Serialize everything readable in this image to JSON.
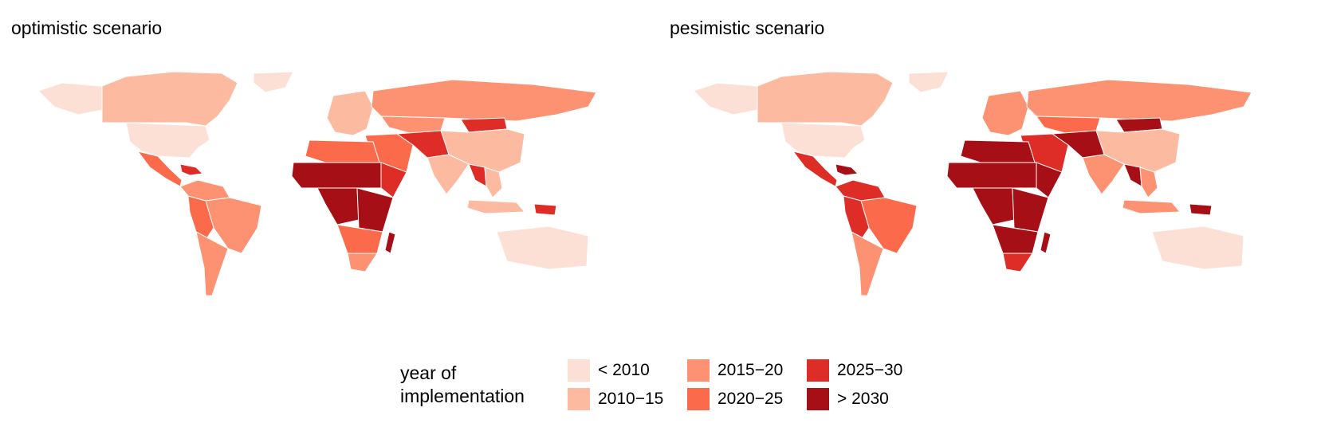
{
  "panels": [
    {
      "title": "optimistic scenario"
    },
    {
      "title": "pesimistic scenario"
    }
  ],
  "legend": {
    "title_line1": "year of",
    "title_line2": "implementation",
    "items": [
      {
        "label": "< 2010",
        "color": "#fde0d5"
      },
      {
        "label": "2010−15",
        "color": "#fcbba1"
      },
      {
        "label": "2015−20",
        "color": "#fc9272"
      },
      {
        "label": "2020−25",
        "color": "#fb6a4a"
      },
      {
        "label": "2025−30",
        "color": "#de2d26"
      },
      {
        "label": "> 2030",
        "color": "#a50f15"
      }
    ]
  },
  "regions_optimistic": {
    "canada": 1,
    "usa": 0,
    "alaska": 0,
    "greenland": 0,
    "mexico_central": 3,
    "caribbean": 4,
    "south_america_north": 2,
    "brazil": 2,
    "andes": 3,
    "southern_cone": 2,
    "europe": 1,
    "russia": 2,
    "central_asia": 2,
    "mongolia": 4,
    "china": 1,
    "middle_east": 3,
    "afghanistan": 4,
    "india": 1,
    "southeast_asia": 1,
    "myanmar_laos": 4,
    "indonesia": 1,
    "png": 4,
    "australia": 0,
    "north_africa": 3,
    "sahel": 5,
    "horn_africa": 4,
    "central_africa": 5,
    "east_africa": 5,
    "southern_africa": 3,
    "south_africa": 2,
    "madagascar": 5
  },
  "regions_pessimistic": {
    "canada": 1,
    "usa": 0,
    "alaska": 0,
    "greenland": 0,
    "mexico_central": 4,
    "caribbean": 5,
    "south_america_north": 4,
    "brazil": 3,
    "andes": 4,
    "southern_cone": 2,
    "europe": 2,
    "russia": 2,
    "central_asia": 3,
    "mongolia": 5,
    "china": 1,
    "middle_east": 4,
    "afghanistan": 5,
    "india": 2,
    "southeast_asia": 2,
    "myanmar_laos": 5,
    "indonesia": 2,
    "png": 5,
    "australia": 0,
    "north_africa": 5,
    "sahel": 5,
    "horn_africa": 5,
    "central_africa": 5,
    "east_africa": 5,
    "southern_africa": 5,
    "south_africa": 4,
    "madagascar": 5
  }
}
